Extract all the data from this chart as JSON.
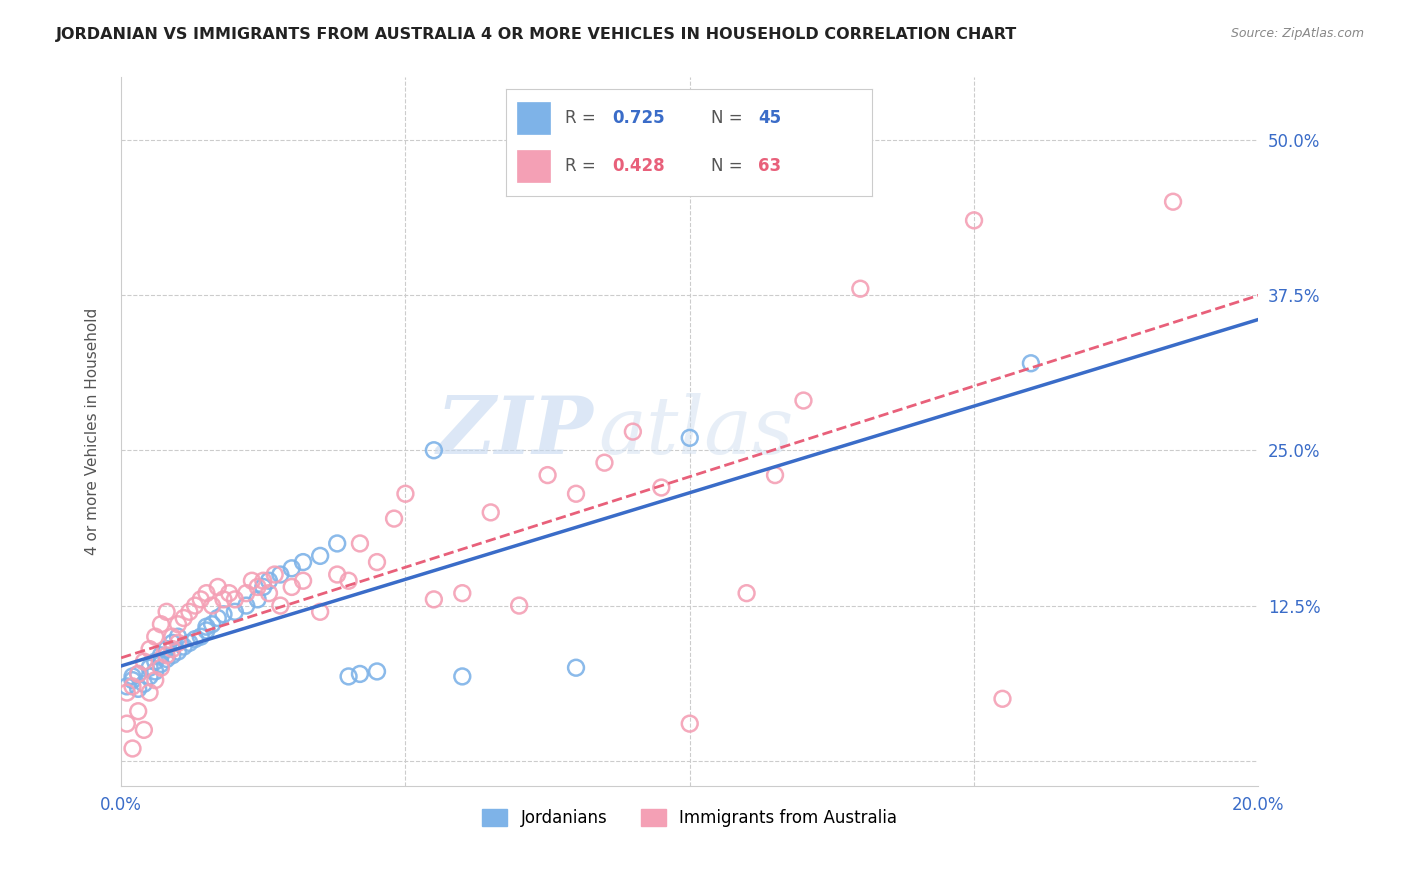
{
  "title": "JORDANIAN VS IMMIGRANTS FROM AUSTRALIA 4 OR MORE VEHICLES IN HOUSEHOLD CORRELATION CHART",
  "source": "Source: ZipAtlas.com",
  "ylabel": "4 or more Vehicles in Household",
  "xlim": [
    0.0,
    0.2
  ],
  "ylim": [
    -0.02,
    0.55
  ],
  "blue_color": "#7EB3E8",
  "pink_color": "#F4A0B5",
  "blue_line_color": "#3A6CC8",
  "pink_line_color": "#E8607A",
  "R_blue": "0.725",
  "N_blue": "45",
  "R_pink": "0.428",
  "N_pink": "63",
  "watermark_zip": "ZIP",
  "watermark_atlas": "atlas",
  "blue_scatter_x": [
    0.001,
    0.002,
    0.002,
    0.003,
    0.003,
    0.004,
    0.005,
    0.005,
    0.006,
    0.006,
    0.007,
    0.007,
    0.008,
    0.008,
    0.009,
    0.009,
    0.01,
    0.01,
    0.011,
    0.012,
    0.013,
    0.014,
    0.015,
    0.015,
    0.016,
    0.017,
    0.018,
    0.02,
    0.022,
    0.024,
    0.025,
    0.026,
    0.028,
    0.03,
    0.032,
    0.035,
    0.038,
    0.04,
    0.042,
    0.045,
    0.055,
    0.06,
    0.08,
    0.1,
    0.16
  ],
  "blue_scatter_y": [
    0.06,
    0.065,
    0.068,
    0.058,
    0.07,
    0.062,
    0.075,
    0.068,
    0.08,
    0.072,
    0.085,
    0.078,
    0.09,
    0.082,
    0.095,
    0.085,
    0.1,
    0.088,
    0.092,
    0.095,
    0.098,
    0.1,
    0.105,
    0.108,
    0.11,
    0.115,
    0.118,
    0.12,
    0.125,
    0.13,
    0.14,
    0.145,
    0.15,
    0.155,
    0.16,
    0.165,
    0.175,
    0.068,
    0.07,
    0.072,
    0.25,
    0.068,
    0.075,
    0.26,
    0.32
  ],
  "pink_scatter_x": [
    0.001,
    0.001,
    0.002,
    0.002,
    0.003,
    0.003,
    0.004,
    0.004,
    0.005,
    0.005,
    0.006,
    0.006,
    0.007,
    0.007,
    0.008,
    0.008,
    0.009,
    0.009,
    0.01,
    0.01,
    0.011,
    0.012,
    0.013,
    0.014,
    0.015,
    0.016,
    0.017,
    0.018,
    0.019,
    0.02,
    0.022,
    0.023,
    0.024,
    0.025,
    0.026,
    0.027,
    0.028,
    0.03,
    0.032,
    0.035,
    0.038,
    0.04,
    0.042,
    0.045,
    0.048,
    0.05,
    0.055,
    0.06,
    0.065,
    0.07,
    0.075,
    0.08,
    0.085,
    0.09,
    0.095,
    0.1,
    0.11,
    0.115,
    0.12,
    0.13,
    0.15,
    0.155,
    0.185
  ],
  "pink_scatter_y": [
    0.055,
    0.03,
    0.06,
    0.01,
    0.07,
    0.04,
    0.08,
    0.025,
    0.09,
    0.055,
    0.1,
    0.065,
    0.11,
    0.075,
    0.12,
    0.085,
    0.1,
    0.09,
    0.095,
    0.11,
    0.115,
    0.12,
    0.125,
    0.13,
    0.135,
    0.125,
    0.14,
    0.13,
    0.135,
    0.13,
    0.135,
    0.145,
    0.14,
    0.145,
    0.135,
    0.15,
    0.125,
    0.14,
    0.145,
    0.12,
    0.15,
    0.145,
    0.175,
    0.16,
    0.195,
    0.215,
    0.13,
    0.135,
    0.2,
    0.125,
    0.23,
    0.215,
    0.24,
    0.265,
    0.22,
    0.03,
    0.135,
    0.23,
    0.29,
    0.38,
    0.435,
    0.05,
    0.45
  ]
}
